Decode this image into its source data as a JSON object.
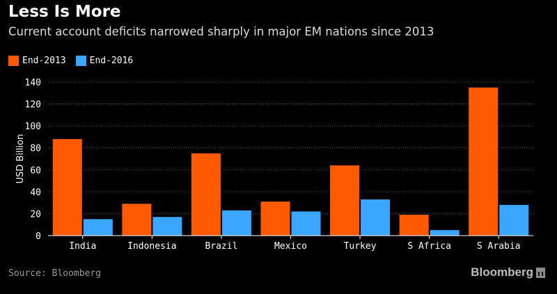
{
  "header": {
    "title": "Less Is More",
    "subtitle": "Current account deficits narrowed sharply in major EM nations since 2013"
  },
  "legend": {
    "items": [
      {
        "label": "End-2013",
        "color": "#ff5a00"
      },
      {
        "label": "End-2016",
        "color": "#3ba6ff"
      }
    ]
  },
  "chart_data": {
    "type": "bar",
    "title": "Less Is More",
    "subtitle": "Current account deficits narrowed sharply in major EM nations since 2013",
    "xlabel": "",
    "ylabel": "USD Billion",
    "ylim": [
      0,
      140
    ],
    "yticks": [
      0,
      20,
      40,
      60,
      80,
      100,
      120,
      140
    ],
    "grid": true,
    "categories": [
      "India",
      "Indonesia",
      "Brazil",
      "Mexico",
      "Turkey",
      "S Africa",
      "S Arabia"
    ],
    "series": [
      {
        "name": "End-2013",
        "color": "#ff5a00",
        "values": [
          88,
          29,
          75,
          31,
          64,
          19,
          135
        ]
      },
      {
        "name": "End-2016",
        "color": "#3ba6ff",
        "values": [
          15,
          17,
          23,
          22,
          33,
          5,
          28
        ]
      }
    ]
  },
  "footer": {
    "source": "Source: Bloomberg",
    "brand": "Bloomberg"
  }
}
